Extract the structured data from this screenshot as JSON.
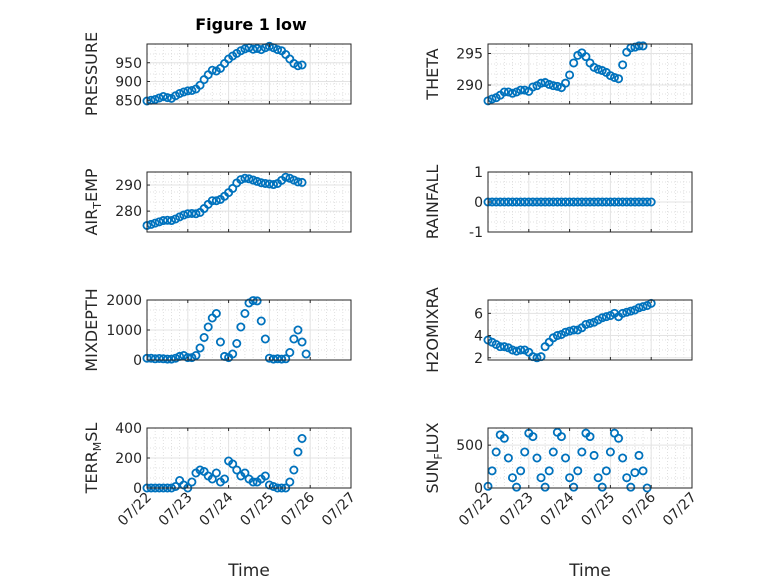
{
  "figure": {
    "title": "Figure 1 low"
  },
  "chart_data": [
    {
      "type": "scatter",
      "ylabel": "PRESSURE",
      "xlabel": "",
      "title": "Figure 1 low",
      "xlim": [
        0,
        5
      ],
      "ylim": [
        840,
        1000
      ],
      "yticks": [
        850,
        900,
        950
      ],
      "xticklabels": [
        "07/22",
        "07/23",
        "07/24",
        "07/25",
        "07/26",
        "07/27"
      ],
      "show_xticklabels": false,
      "grid": true,
      "marker_color": "#0072BD",
      "x": [
        0,
        0.1,
        0.2,
        0.3,
        0.4,
        0.5,
        0.6,
        0.7,
        0.8,
        0.9,
        1.0,
        1.1,
        1.2,
        1.3,
        1.4,
        1.5,
        1.6,
        1.7,
        1.8,
        1.9,
        2.0,
        2.1,
        2.2,
        2.3,
        2.4,
        2.5,
        2.6,
        2.7,
        2.8,
        2.9,
        3.0,
        3.1,
        3.2,
        3.3,
        3.4,
        3.5,
        3.6,
        3.7,
        3.8
      ],
      "y": [
        848,
        850,
        852,
        856,
        860,
        857,
        855,
        862,
        868,
        872,
        875,
        876,
        880,
        890,
        905,
        918,
        930,
        928,
        935,
        948,
        960,
        968,
        975,
        982,
        987,
        990,
        986,
        988,
        985,
        990,
        994,
        990,
        985,
        982,
        972,
        960,
        948,
        942,
        944
      ]
    },
    {
      "type": "scatter",
      "ylabel": "THETA",
      "xlabel": "",
      "xlim": [
        0,
        5
      ],
      "ylim": [
        287,
        296.5
      ],
      "yticks": [
        290,
        295
      ],
      "xticklabels": [
        "07/22",
        "07/23",
        "07/24",
        "07/25",
        "07/26",
        "07/27"
      ],
      "show_xticklabels": false,
      "grid": true,
      "marker_color": "#0072BD",
      "x": [
        0,
        0.1,
        0.2,
        0.3,
        0.4,
        0.5,
        0.6,
        0.7,
        0.8,
        0.9,
        1.0,
        1.1,
        1.2,
        1.3,
        1.4,
        1.5,
        1.6,
        1.7,
        1.8,
        1.9,
        2.0,
        2.1,
        2.2,
        2.3,
        2.4,
        2.5,
        2.6,
        2.7,
        2.8,
        2.9,
        3.0,
        3.1,
        3.2,
        3.3,
        3.4,
        3.5,
        3.6,
        3.7,
        3.8
      ],
      "y": [
        287.5,
        287.8,
        288.0,
        288.4,
        288.9,
        288.9,
        288.7,
        288.9,
        289.2,
        289.2,
        289.0,
        289.7,
        289.9,
        290.3,
        290.4,
        290.1,
        289.9,
        289.8,
        289.6,
        290.3,
        291.6,
        293.5,
        294.7,
        295.1,
        294.5,
        293.5,
        292.8,
        292.5,
        292.3,
        292.0,
        291.5,
        291.2,
        291.0,
        293.2,
        295.2,
        295.9,
        296.0,
        296.2,
        296.2
      ]
    },
    {
      "type": "scatter",
      "ylabel": "AIR_TEMP",
      "xlabel": "",
      "xlim": [
        0,
        5
      ],
      "ylim": [
        272,
        295
      ],
      "yticks": [
        280,
        290
      ],
      "xticklabels": [
        "07/22",
        "07/23",
        "07/24",
        "07/25",
        "07/26",
        "07/27"
      ],
      "show_xticklabels": false,
      "grid": true,
      "marker_color": "#0072BD",
      "x": [
        0,
        0.1,
        0.2,
        0.3,
        0.4,
        0.5,
        0.6,
        0.7,
        0.8,
        0.9,
        1.0,
        1.1,
        1.2,
        1.3,
        1.4,
        1.5,
        1.6,
        1.7,
        1.8,
        1.9,
        2.0,
        2.1,
        2.2,
        2.3,
        2.4,
        2.5,
        2.6,
        2.7,
        2.8,
        2.9,
        3.0,
        3.1,
        3.2,
        3.3,
        3.4,
        3.5,
        3.6,
        3.7,
        3.8
      ],
      "y": [
        274.5,
        274.9,
        275.4,
        275.9,
        276.4,
        276.5,
        276.4,
        277.0,
        277.8,
        278.5,
        279.0,
        279.1,
        279.0,
        279.5,
        281.0,
        282.6,
        284.0,
        284.0,
        284.5,
        285.7,
        287.1,
        288.7,
        290.8,
        292.1,
        292.6,
        292.4,
        291.9,
        291.4,
        290.9,
        290.6,
        290.4,
        290.2,
        290.6,
        291.8,
        293.0,
        292.6,
        291.9,
        291.2,
        291.0
      ]
    },
    {
      "type": "scatter",
      "ylabel": "RAINFALL",
      "xlabel": "",
      "xlim": [
        0,
        5
      ],
      "ylim": [
        -1,
        1
      ],
      "yticks": [
        -1,
        0,
        1
      ],
      "xticklabels": [
        "07/22",
        "07/23",
        "07/24",
        "07/25",
        "07/26",
        "07/27"
      ],
      "show_xticklabels": false,
      "grid": true,
      "marker_color": "#0072BD",
      "x": [
        0,
        0.1,
        0.2,
        0.3,
        0.4,
        0.5,
        0.6,
        0.7,
        0.8,
        0.9,
        1.0,
        1.1,
        1.2,
        1.3,
        1.4,
        1.5,
        1.6,
        1.7,
        1.8,
        1.9,
        2.0,
        2.1,
        2.2,
        2.3,
        2.4,
        2.5,
        2.6,
        2.7,
        2.8,
        2.9,
        3.0,
        3.1,
        3.2,
        3.3,
        3.4,
        3.5,
        3.6,
        3.7,
        3.8,
        3.9,
        4.0
      ],
      "y": [
        0,
        0,
        0,
        0,
        0,
        0,
        0,
        0,
        0,
        0,
        0,
        0,
        0,
        0,
        0,
        0,
        0,
        0,
        0,
        0,
        0,
        0,
        0,
        0,
        0,
        0,
        0,
        0,
        0,
        0,
        0,
        0,
        0,
        0,
        0,
        0,
        0,
        0,
        0,
        0,
        0
      ]
    },
    {
      "type": "scatter",
      "ylabel": "MIXDEPTH",
      "xlabel": "",
      "xlim": [
        0,
        5
      ],
      "ylim": [
        0,
        2000
      ],
      "yticks": [
        0,
        1000,
        2000
      ],
      "xticklabels": [
        "07/22",
        "07/23",
        "07/24",
        "07/25",
        "07/26",
        "07/27"
      ],
      "show_xticklabels": false,
      "grid": true,
      "marker_color": "#0072BD",
      "x": [
        0,
        0.1,
        0.2,
        0.3,
        0.4,
        0.5,
        0.6,
        0.7,
        0.8,
        0.9,
        1.0,
        1.1,
        1.2,
        1.3,
        1.4,
        1.5,
        1.6,
        1.7,
        1.8,
        1.9,
        2.0,
        2.1,
        2.2,
        2.3,
        2.4,
        2.5,
        2.6,
        2.7,
        2.8,
        2.9,
        3.0,
        3.1,
        3.2,
        3.3,
        3.4,
        3.5,
        3.6,
        3.7,
        3.8,
        3.9
      ],
      "y": [
        60,
        60,
        40,
        50,
        40,
        30,
        30,
        60,
        120,
        150,
        80,
        80,
        150,
        400,
        750,
        1100,
        1400,
        1550,
        600,
        120,
        80,
        200,
        550,
        1100,
        1550,
        1900,
        1980,
        1970,
        1300,
        700,
        60,
        30,
        40,
        30,
        40,
        250,
        700,
        1000,
        600,
        200
      ]
    },
    {
      "type": "scatter",
      "ylabel": "H2OMIXRA",
      "xlabel": "",
      "xlim": [
        0,
        5
      ],
      "ylim": [
        1.8,
        7.2
      ],
      "yticks": [
        2,
        4,
        6
      ],
      "xticklabels": [
        "07/22",
        "07/23",
        "07/24",
        "07/25",
        "07/26",
        "07/27"
      ],
      "show_xticklabels": false,
      "grid": true,
      "marker_color": "#0072BD",
      "x": [
        0,
        0.1,
        0.2,
        0.3,
        0.4,
        0.5,
        0.6,
        0.7,
        0.8,
        0.9,
        1.0,
        1.1,
        1.2,
        1.3,
        1.4,
        1.5,
        1.6,
        1.7,
        1.8,
        1.9,
        2.0,
        2.1,
        2.2,
        2.3,
        2.4,
        2.5,
        2.6,
        2.7,
        2.8,
        2.9,
        3.0,
        3.1,
        3.2,
        3.3,
        3.4,
        3.5,
        3.6,
        3.7,
        3.8,
        3.9,
        4.0
      ],
      "y": [
        3.6,
        3.4,
        3.2,
        3.0,
        3.0,
        2.9,
        2.7,
        2.6,
        2.7,
        2.7,
        2.5,
        2.1,
        2.0,
        2.1,
        3.0,
        3.4,
        3.8,
        4.0,
        4.1,
        4.3,
        4.4,
        4.5,
        4.5,
        4.7,
        5.0,
        5.1,
        5.2,
        5.4,
        5.6,
        5.7,
        5.8,
        6.0,
        5.7,
        6.0,
        6.1,
        6.2,
        6.3,
        6.5,
        6.6,
        6.7,
        6.9
      ]
    },
    {
      "type": "scatter",
      "ylabel": "TERR_MSL",
      "xlabel": "Time",
      "xlim": [
        0,
        5
      ],
      "ylim": [
        0,
        400
      ],
      "yticks": [
        0,
        200,
        400
      ],
      "xticklabels": [
        "07/22",
        "07/23",
        "07/24",
        "07/25",
        "07/26",
        "07/27"
      ],
      "show_xticklabels": true,
      "grid": true,
      "marker_color": "#0072BD",
      "x": [
        0,
        0.1,
        0.2,
        0.3,
        0.4,
        0.5,
        0.6,
        0.7,
        0.8,
        0.9,
        1.0,
        1.1,
        1.2,
        1.3,
        1.4,
        1.5,
        1.6,
        1.7,
        1.8,
        1.9,
        2.0,
        2.1,
        2.2,
        2.3,
        2.4,
        2.5,
        2.6,
        2.7,
        2.8,
        2.9,
        3.0,
        3.1,
        3.2,
        3.3,
        3.4,
        3.5,
        3.6,
        3.7,
        3.8
      ],
      "y": [
        0,
        0,
        0,
        0,
        0,
        0,
        0,
        10,
        50,
        20,
        0,
        40,
        100,
        120,
        110,
        80,
        60,
        100,
        40,
        60,
        180,
        160,
        120,
        80,
        100,
        60,
        40,
        40,
        60,
        80,
        20,
        10,
        0,
        0,
        0,
        40,
        120,
        240,
        330
      ]
    },
    {
      "type": "scatter",
      "ylabel": "SUN_FLUX",
      "xlabel": "Time",
      "xlim": [
        0,
        5
      ],
      "ylim": [
        0,
        700
      ],
      "yticks": [
        0,
        500
      ],
      "xticklabels": [
        "07/22",
        "07/23",
        "07/24",
        "07/25",
        "07/26",
        "07/27"
      ],
      "show_xticklabels": true,
      "grid": true,
      "marker_color": "#0072BD",
      "x": [
        0,
        0.1,
        0.2,
        0.3,
        0.4,
        0.5,
        0.6,
        0.7,
        0.8,
        0.9,
        1.0,
        1.1,
        1.2,
        1.3,
        1.4,
        1.5,
        1.6,
        1.7,
        1.8,
        1.9,
        2.0,
        2.1,
        2.2,
        2.3,
        2.4,
        2.5,
        2.6,
        2.7,
        2.8,
        2.9,
        3.0,
        3.1,
        3.2,
        3.3,
        3.4,
        3.5,
        3.6,
        3.7,
        3.8,
        3.9
      ],
      "y": [
        20,
        200,
        420,
        620,
        580,
        350,
        120,
        10,
        200,
        420,
        640,
        600,
        350,
        120,
        10,
        200,
        420,
        650,
        600,
        350,
        120,
        10,
        200,
        420,
        640,
        600,
        380,
        120,
        10,
        200,
        420,
        640,
        580,
        350,
        120,
        10,
        180,
        380,
        200,
        0
      ]
    }
  ]
}
